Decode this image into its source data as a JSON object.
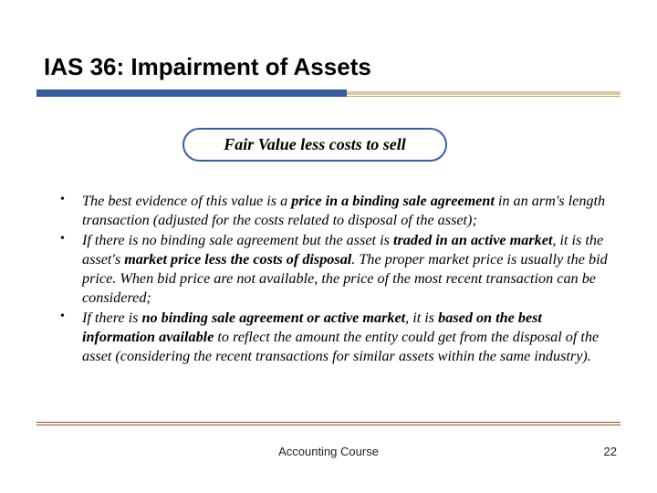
{
  "title": "IAS 36: Impairment of Assets",
  "callout": "Fair Value less costs to sell",
  "bullets": [
    {
      "pre": "The best evidence of this value is a ",
      "bold1": "price in a binding sale agreement",
      "post": " in an arm's length transaction (adjusted for the costs related to disposal of the asset);"
    },
    {
      "pre": "If there is no binding sale agreement but the asset is ",
      "bold1": "traded in an active market",
      "mid1": ", it is the asset's ",
      "bold2": "market price less the costs of disposal",
      "post": ". The proper market price is usually the bid price. When bid price are not available, the price of the most recent transaction can be considered;"
    },
    {
      "pre": "If there is ",
      "bold1": "no binding sale agreement or active market",
      "mid1": ", it is ",
      "bold2": "based on the best information available",
      "post": " to reflect the amount the entity could get from the disposal of the asset (considering the recent transactions for similar assets within the same industry)."
    }
  ],
  "footer": {
    "center": "Accounting Course",
    "page": "22"
  },
  "colors": {
    "bar_primary": "#355aa0",
    "bar_sub": "#d9c99f",
    "bar_thin": "#bca86b",
    "rule": "#a04a2c",
    "callout_border": "#3a5ea6"
  }
}
